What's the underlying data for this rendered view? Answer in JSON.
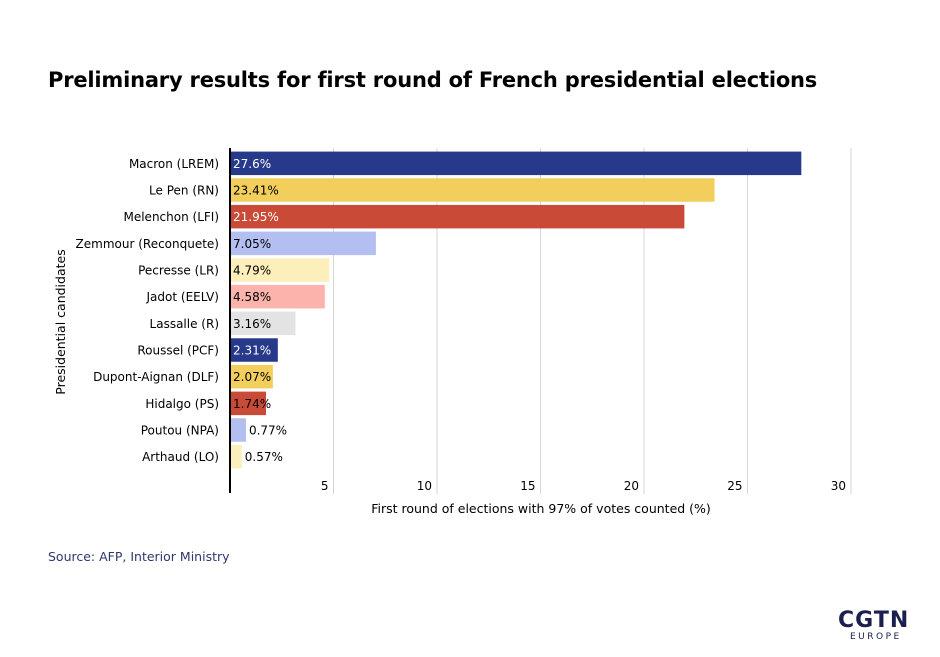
{
  "header": {
    "title": "Preliminary results for first round of French presidential elections"
  },
  "footer": {
    "source": "Source: AFP, Interior Ministry",
    "logo_main": "CGTN",
    "logo_sub": "EUROPE"
  },
  "chart_data": {
    "type": "bar",
    "orientation": "horizontal",
    "title": "Preliminary results for first round of French presidential elections",
    "xlabel": "First round of elections with 97% of votes counted (%)",
    "ylabel": "Presidential candidates",
    "xlim": [
      0,
      30
    ],
    "xticks": [
      5,
      10,
      15,
      20,
      25,
      30
    ],
    "grid": true,
    "categories": [
      "Macron (LREM)",
      "Le Pen (RN)",
      "Melenchon (LFI)",
      "Zemmour (Reconquete)",
      "Pecresse (LR)",
      "Jadot (EELV)",
      "Lassalle (R)",
      "Roussel (PCF)",
      "Dupont-Aignan (DLF)",
      "Hidalgo (PS)",
      "Poutou (NPA)",
      "Arthaud (LO)"
    ],
    "values": [
      27.6,
      23.41,
      21.95,
      7.05,
      4.79,
      4.58,
      3.16,
      2.31,
      2.07,
      1.74,
      0.77,
      0.57
    ],
    "labels": [
      "27.6%",
      "23.41%",
      "21.95%",
      "7.05%",
      "4.79%",
      "4.58%",
      "3.16%",
      "2.31%",
      "2.07%",
      "1.74%",
      "0.77%",
      "0.57%"
    ],
    "colors": [
      "#27398a",
      "#f2cf5c",
      "#c94a37",
      "#b3bff0",
      "#fdefbc",
      "#fbb3ab",
      "#e3e3e3",
      "#27398a",
      "#f2cf5c",
      "#c94a37",
      "#b3bff0",
      "#fdefbc"
    ],
    "label_colors": [
      "#ffffff",
      "#000000",
      "#ffffff",
      "#000000",
      "#000000",
      "#000000",
      "#000000",
      "#ffffff",
      "#000000",
      "#000000",
      "#000000",
      "#000000"
    ]
  }
}
